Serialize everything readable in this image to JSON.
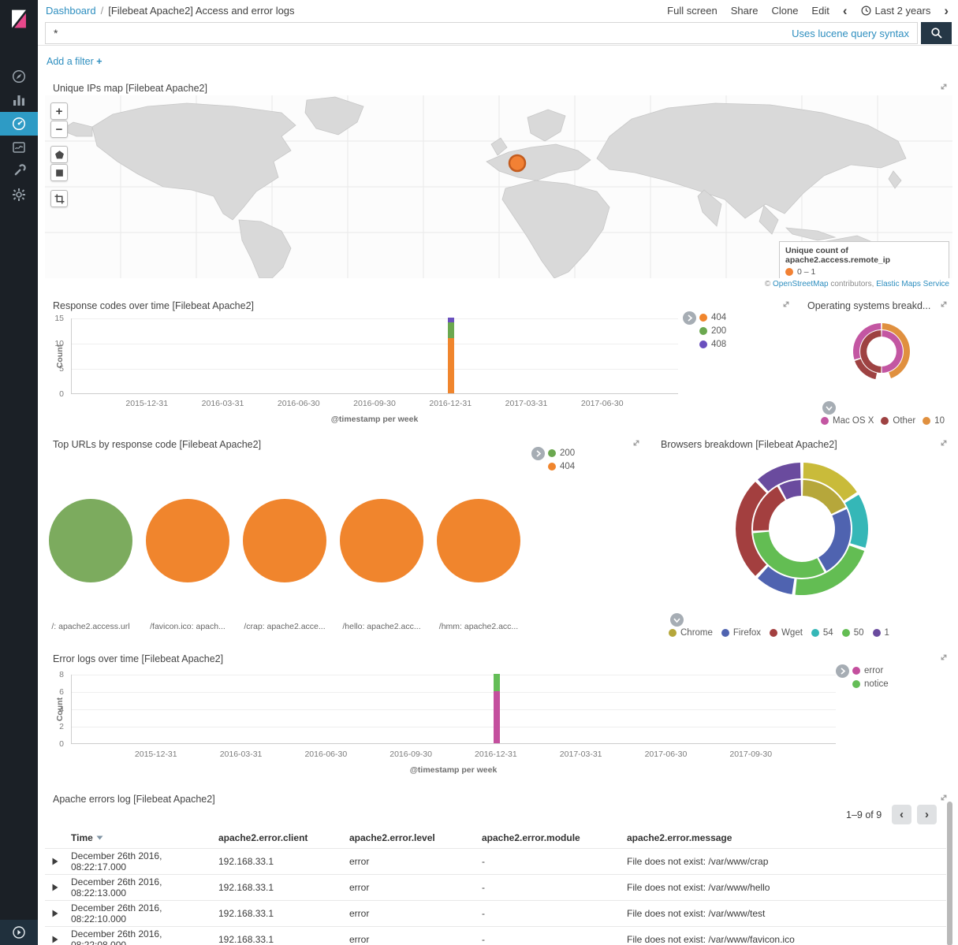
{
  "sidebar": {
    "icons": [
      "compass",
      "bar-chart",
      "dashboard-gauge",
      "timelion",
      "wrench",
      "gear"
    ],
    "selected": "dashboard-gauge"
  },
  "header": {
    "breadcrumb": "Dashboard",
    "separator": "/",
    "title": "[Filebeat Apache2] Access and error logs",
    "actions": [
      "Full screen",
      "Share",
      "Clone",
      "Edit"
    ],
    "time_picker": {
      "prev": "‹",
      "label": "Last 2 years",
      "next": "›"
    }
  },
  "query_bar": {
    "value": "*",
    "syntax_hint": "Uses lucene query syntax"
  },
  "filter_bar": {
    "add_filter_label": "Add a filter",
    "plus": "+"
  },
  "map": {
    "title": "Unique IPs map [Filebeat Apache2]",
    "controls": {
      "zoom_in": "+",
      "zoom_out": "−"
    },
    "legend_title": "Unique count of apache2.access.remote_ip",
    "legend_range": "0 – 1",
    "legend_color": "#f28134",
    "marker_color": "#f28134",
    "attribution": {
      "prefix": "©",
      "osm_link": "OpenStreetMap",
      "middle": "contributors,",
      "ems_link": "Elastic Maps Service"
    }
  },
  "response_codes": {
    "title": "Response codes over time [Filebeat Apache2]",
    "chart_data": {
      "type": "bar",
      "ylabel": "Count",
      "xlabel": "@timestamp per week",
      "ylim": [
        0,
        15
      ],
      "yticks": [
        0,
        5,
        10,
        15
      ],
      "x": [
        "2015-12-31",
        "2016-03-31",
        "2016-06-30",
        "2016-09-30",
        "2016-12-31",
        "2017-03-31",
        "2017-06-30"
      ],
      "bar_at": "2016-12-31",
      "series": [
        {
          "name": "404",
          "color": "#f0852d",
          "value": 11
        },
        {
          "name": "200",
          "color": "#6ba84f",
          "value": 3
        },
        {
          "name": "408",
          "color": "#6a50be",
          "value": 1
        }
      ],
      "legend": [
        {
          "label": "404",
          "color": "#f0852d"
        },
        {
          "label": "200",
          "color": "#6ba84f"
        },
        {
          "label": "408",
          "color": "#6a50be"
        }
      ]
    }
  },
  "os_breakdown": {
    "title": "Operating systems breakd...",
    "chart_data": {
      "type": "pie",
      "rings": [
        [
          {
            "label": "Mac OS X",
            "color": "#c356a2",
            "value": 50
          },
          {
            "label": "Other",
            "color": "#9e4242",
            "value": 50
          }
        ],
        [
          {
            "label": "10",
            "color": "#e0903f",
            "value": 45
          },
          {
            "label": "",
            "color": null,
            "value": 8
          },
          {
            "label": "",
            "color": "#9e4242",
            "value": 17
          },
          {
            "label": "",
            "color": "#c356a2",
            "value": 30
          }
        ]
      ],
      "legend": [
        {
          "label": "Mac OS X",
          "color": "#c356a2"
        },
        {
          "label": "Other",
          "color": "#9e4242"
        },
        {
          "label": "10",
          "color": "#e0903f"
        }
      ]
    }
  },
  "top_urls": {
    "title": "Top URLs by response code [Filebeat Apache2]",
    "legend": [
      {
        "label": "200",
        "color": "#6ba84f"
      },
      {
        "label": "404",
        "color": "#f0852d"
      }
    ],
    "chart_data": {
      "type": "pie",
      "slices": [
        {
          "label": "/: apache2.access.url",
          "color": "#7cab5e",
          "value": 100
        },
        {
          "label": "/favicon.ico: apach...",
          "color": "#f0852d",
          "value": 100
        },
        {
          "label": "/crap: apache2.acce...",
          "color": "#f0852d",
          "value": 100
        },
        {
          "label": "/hello: apache2.acc...",
          "color": "#f0852d",
          "value": 100
        },
        {
          "label": "/hmm: apache2.acc...",
          "color": "#f0852d",
          "value": 100
        }
      ]
    }
  },
  "browsers": {
    "title": "Browsers breakdown [Filebeat Apache2]",
    "chart_data": {
      "type": "pie",
      "rings": [
        [
          {
            "label": "Chrome",
            "color": "#b6a73b",
            "value": 18
          },
          {
            "label": "Firefox",
            "color": "#4f63b0",
            "value": 24
          },
          {
            "label": "",
            "color": "#63bd53",
            "value": 32
          },
          {
            "label": "Wget",
            "color": "#a33f3f",
            "value": 18
          },
          {
            "label": "",
            "color": "#6a4b9e",
            "value": 8
          }
        ],
        [
          {
            "label": "",
            "color": "#c9bb3a",
            "value": 16
          },
          {
            "label": "54",
            "color": "#35b7b7",
            "value": 14
          },
          {
            "label": "50",
            "color": "#63bd53",
            "value": 22
          },
          {
            "label": "",
            "color": "#4f63b0",
            "value": 10
          },
          {
            "label": "",
            "color": "#a33f3f",
            "value": 26
          },
          {
            "label": "1",
            "color": "#6a4b9e",
            "value": 12
          }
        ]
      ],
      "legend": [
        {
          "label": "Chrome",
          "color": "#b6a73b"
        },
        {
          "label": "Firefox",
          "color": "#4f63b0"
        },
        {
          "label": "Wget",
          "color": "#a33f3f"
        },
        {
          "label": "54",
          "color": "#35b7b7"
        },
        {
          "label": "50",
          "color": "#63bd53"
        },
        {
          "label": "1",
          "color": "#6a4b9e"
        }
      ]
    }
  },
  "error_logs": {
    "title": "Error logs over time [Filebeat Apache2]",
    "chart_data": {
      "type": "bar",
      "ylabel": "Count",
      "xlabel": "@timestamp per week",
      "ylim": [
        0,
        8
      ],
      "yticks": [
        0,
        2,
        4,
        6,
        8
      ],
      "x": [
        "2015-12-31",
        "2016-03-31",
        "2016-06-30",
        "2016-09-30",
        "2016-12-31",
        "2017-03-31",
        "2017-06-30",
        "2017-09-30"
      ],
      "bar_at": "2016-12-31",
      "series": [
        {
          "name": "error",
          "color": "#c44f9e",
          "value": 6
        },
        {
          "name": "notice",
          "color": "#64bd57",
          "value": 2
        }
      ],
      "legend": [
        {
          "label": "error",
          "color": "#c44f9e"
        },
        {
          "label": "notice",
          "color": "#64bd57"
        }
      ]
    }
  },
  "errors_table": {
    "title": "Apache errors log [Filebeat Apache2]",
    "pagination": {
      "label": "1–9 of 9",
      "prev": "‹",
      "next": "›"
    },
    "columns": [
      "Time",
      "apache2.error.client",
      "apache2.error.level",
      "apache2.error.module",
      "apache2.error.message"
    ],
    "sorted_by": "Time",
    "rows": [
      {
        "time": "December 26th 2016, 08:22:17.000",
        "client": "192.168.33.1",
        "level": "error",
        "module": "-",
        "message": "File does not exist: /var/www/crap"
      },
      {
        "time": "December 26th 2016, 08:22:13.000",
        "client": "192.168.33.1",
        "level": "error",
        "module": "-",
        "message": "File does not exist: /var/www/hello"
      },
      {
        "time": "December 26th 2016, 08:22:10.000",
        "client": "192.168.33.1",
        "level": "error",
        "module": "-",
        "message": "File does not exist: /var/www/test"
      },
      {
        "time": "December 26th 2016, 08:22:08.000",
        "client": "192.168.33.1",
        "level": "error",
        "module": "-",
        "message": "File does not exist: /var/www/favicon.ico"
      }
    ]
  }
}
